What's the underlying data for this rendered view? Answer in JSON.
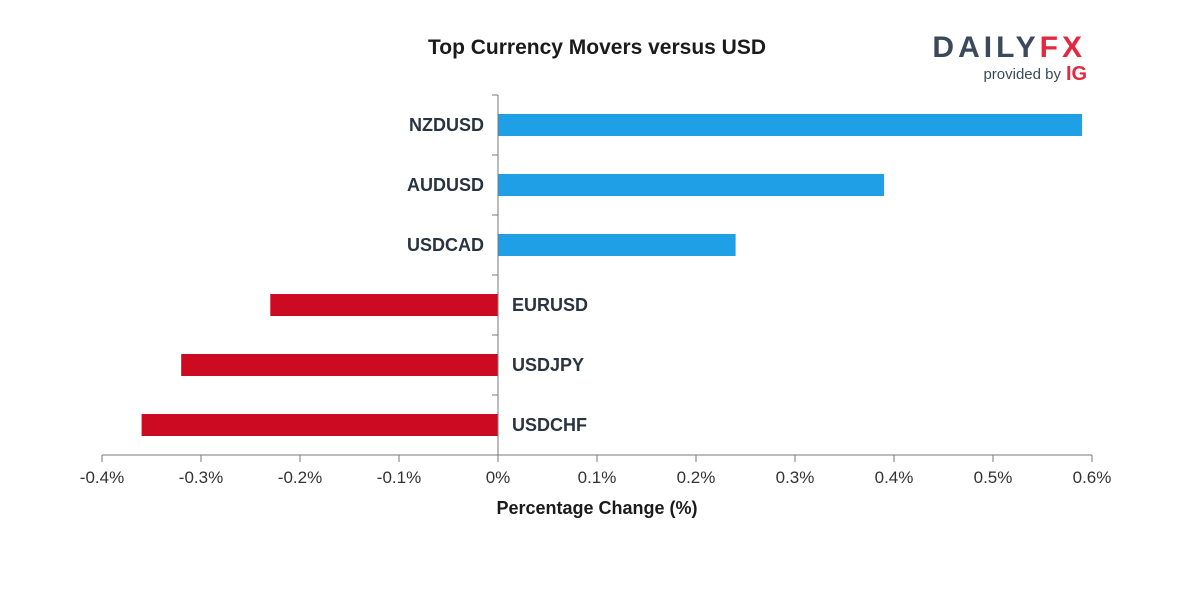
{
  "logo": {
    "brand_part1": "DAILY",
    "brand_part2": "FX",
    "provided_by": "provided by",
    "partner": "IG",
    "colors": {
      "dark": "#3b4a5a",
      "accent": "#e2293f"
    }
  },
  "chart_data": {
    "type": "bar",
    "orientation": "horizontal",
    "title": "Top Currency Movers versus USD",
    "xlabel": "Percentage Change (%)",
    "ylabel": "",
    "xlim": [
      -0.4,
      0.6
    ],
    "ticks": [
      -0.4,
      -0.3,
      -0.2,
      -0.1,
      0,
      0.1,
      0.2,
      0.3,
      0.4,
      0.5,
      0.6
    ],
    "tick_labels": [
      "-0.4%",
      "-0.3%",
      "-0.2%",
      "-0.1%",
      "0%",
      "0.1%",
      "0.2%",
      "0.3%",
      "0.4%",
      "0.5%",
      "0.6%"
    ],
    "categories": [
      "NZDUSD",
      "AUDUSD",
      "USDCAD",
      "EURUSD",
      "USDJPY",
      "USDCHF"
    ],
    "values": [
      0.59,
      0.39,
      0.24,
      -0.23,
      -0.32,
      -0.36
    ],
    "colors": {
      "positive": "#1f9fe6",
      "negative": "#cc0a22"
    },
    "grid": false,
    "legend": "none"
  }
}
